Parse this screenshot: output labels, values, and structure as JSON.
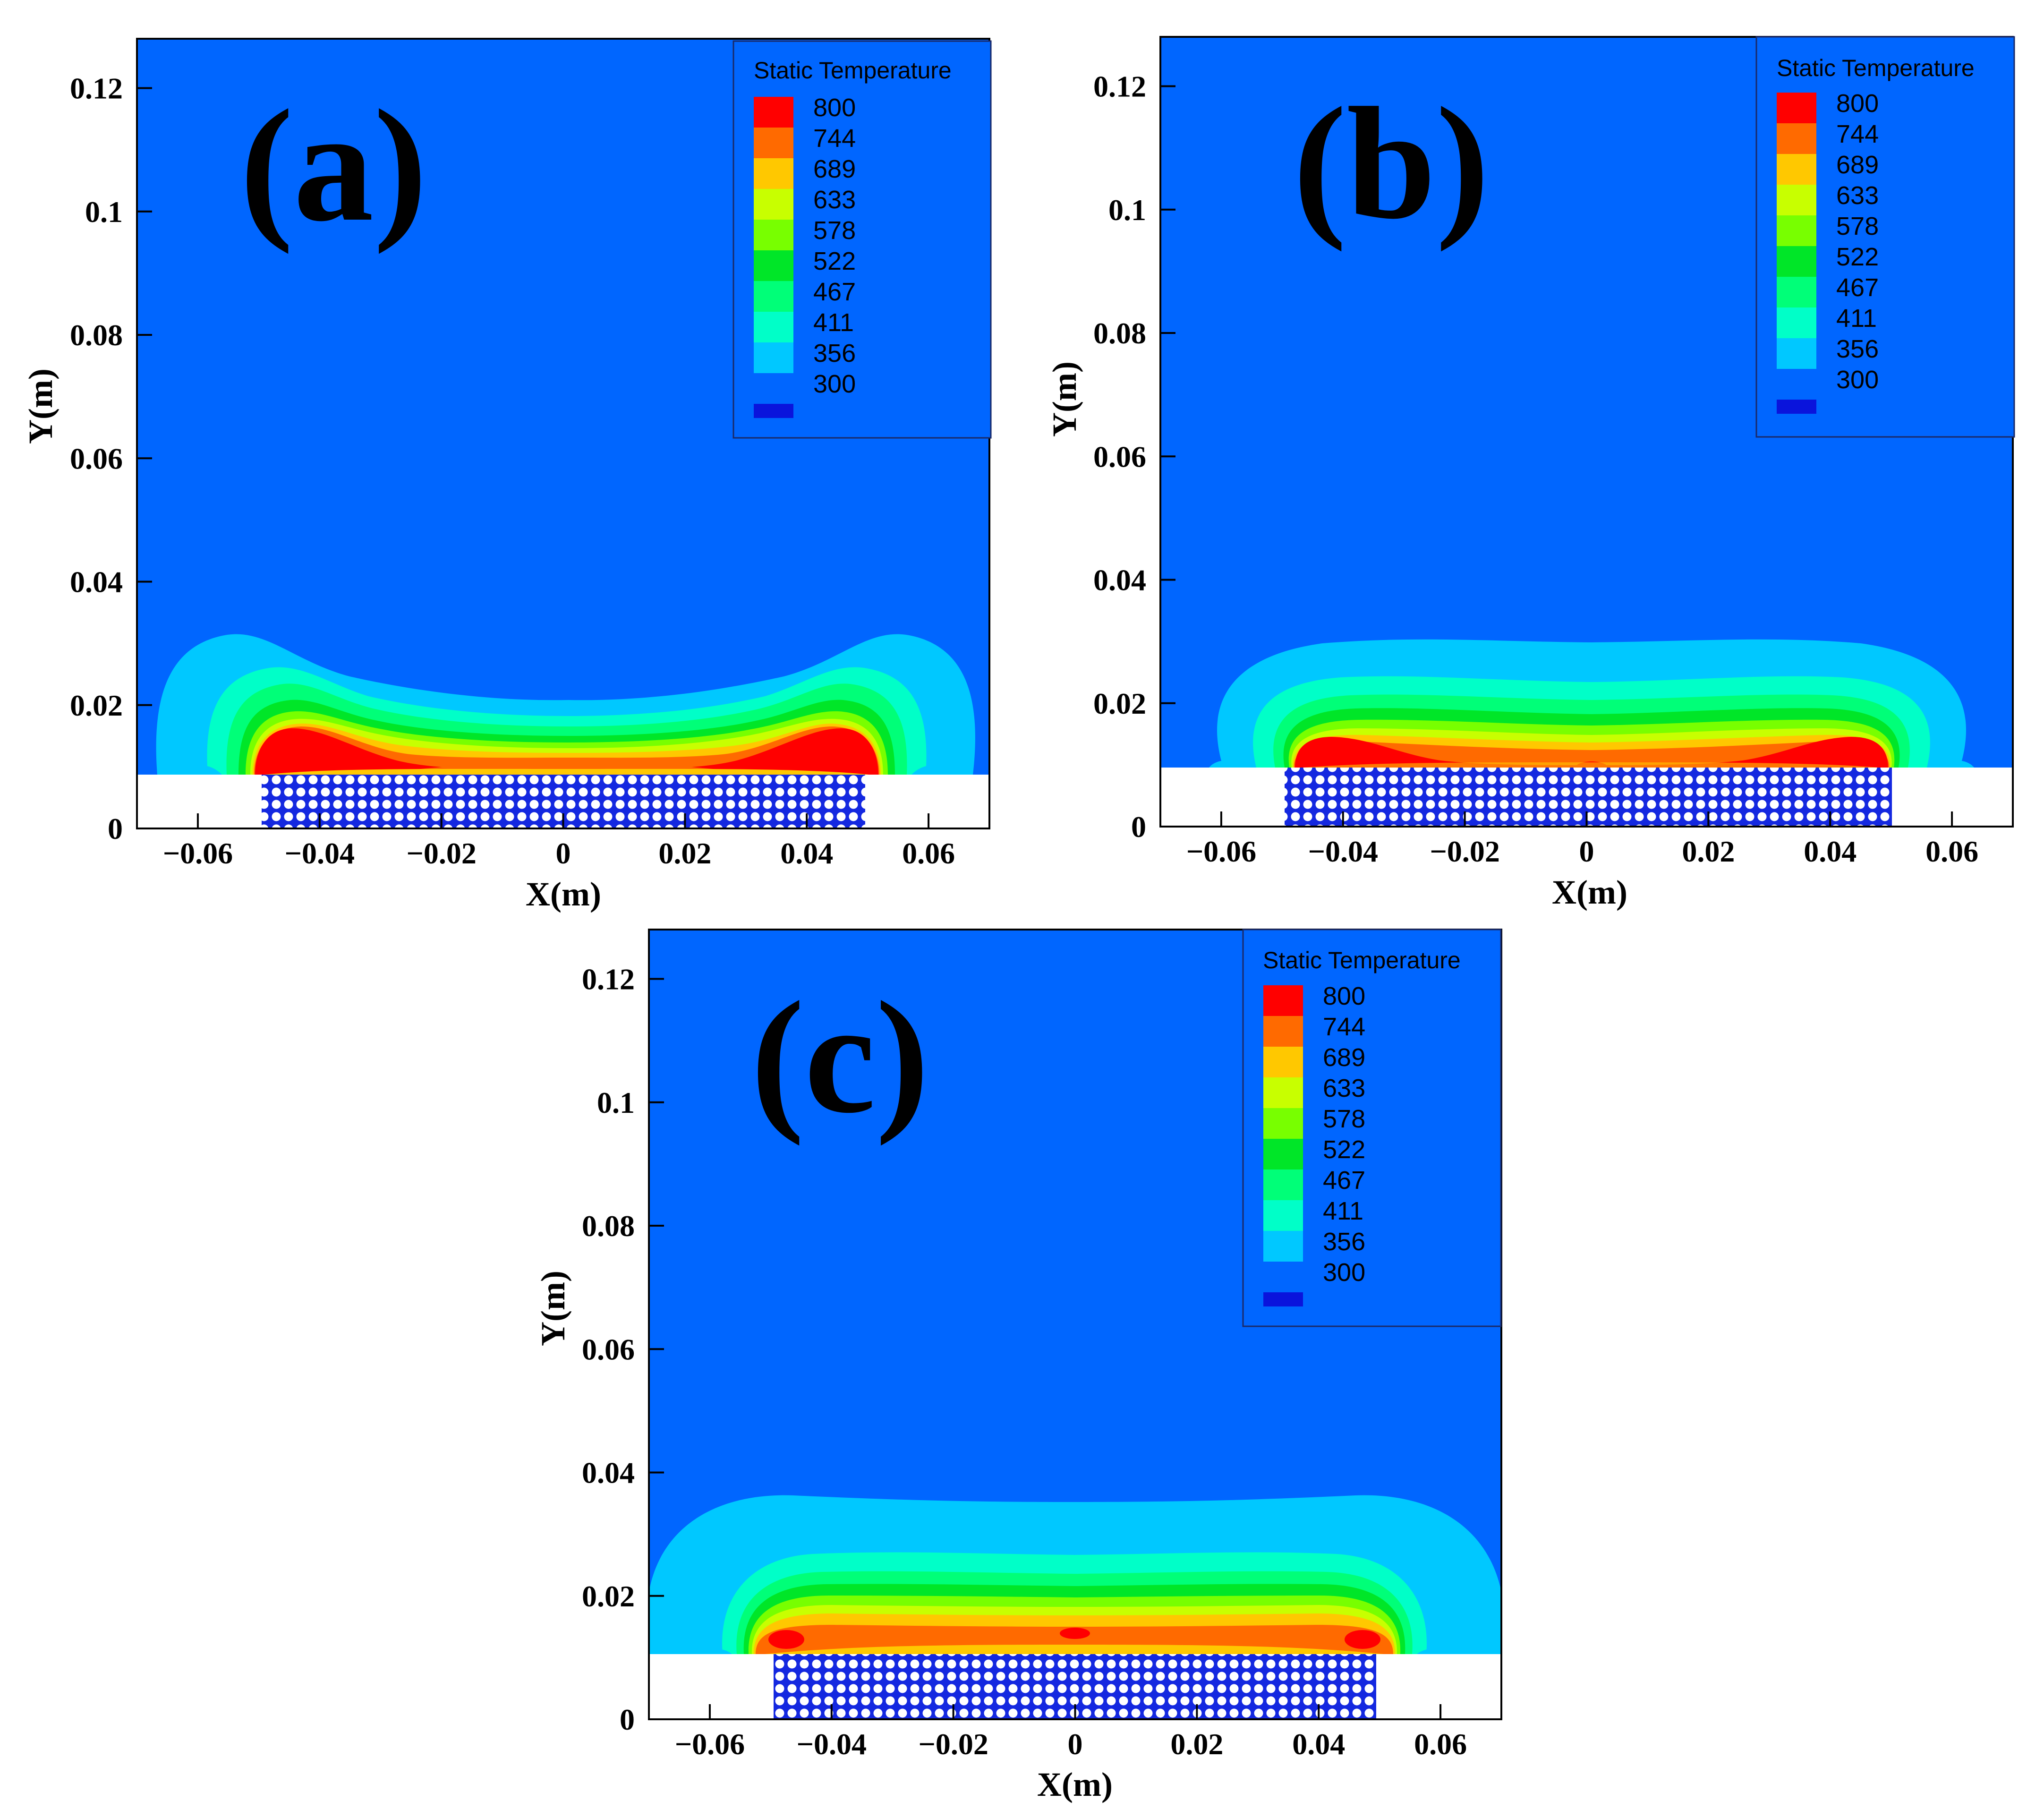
{
  "chart_data": [
    {
      "type": "heatmap",
      "panel_label": "(a)",
      "xlabel": "X(m)",
      "ylabel": "Y(m)",
      "xlim": [
        -0.07,
        0.07
      ],
      "ylim": [
        0,
        0.128
      ],
      "xticks": [
        "−0.06",
        "−0.04",
        "−0.02",
        "0",
        "0.02",
        "0.04",
        "0.06"
      ],
      "xtick_values": [
        -0.06,
        -0.04,
        -0.02,
        0,
        0.02,
        0.04,
        0.06
      ],
      "yticks": [
        "0",
        "0.02",
        "0.04",
        "0.06",
        "0.08",
        "0.1",
        "0.12"
      ],
      "ytick_values": [
        0,
        0.02,
        0.04,
        0.06,
        0.08,
        0.1,
        0.12
      ],
      "legend_title": "Static Temperature",
      "legend_levels": [
        "800",
        "744",
        "689",
        "633",
        "578",
        "522",
        "467",
        "411",
        "356",
        "300"
      ],
      "bed": {
        "x_range": [
          -0.05,
          0.05
        ],
        "height": 0.009,
        "ambient_top_y": 0.009
      },
      "plume": {
        "outer_height": 0.031,
        "center_height": 0.022,
        "hot_edge_height": 0.017,
        "hot_zone": "edges"
      }
    },
    {
      "type": "heatmap",
      "panel_label": "(b)",
      "xlabel": "X(m)",
      "ylabel": "Y(m)",
      "xlim": [
        -0.07,
        0.07
      ],
      "ylim": [
        0,
        0.128
      ],
      "xticks": [
        "−0.06",
        "−0.04",
        "−0.02",
        "0",
        "0.02",
        "0.04",
        "0.06"
      ],
      "xtick_values": [
        -0.06,
        -0.04,
        -0.02,
        0,
        0.02,
        0.04,
        0.06
      ],
      "yticks": [
        "0",
        "0.02",
        "0.04",
        "0.06",
        "0.08",
        "0.1",
        "0.12"
      ],
      "ytick_values": [
        0,
        0.02,
        0.04,
        0.06,
        0.08,
        0.1,
        0.12
      ],
      "legend_title": "Static Temperature",
      "legend_levels": [
        "800",
        "744",
        "689",
        "633",
        "578",
        "522",
        "467",
        "411",
        "356",
        "300"
      ],
      "bed": {
        "x_range": [
          -0.05,
          0.05
        ],
        "height": 0.0095,
        "ambient_top_y": 0.0095
      },
      "plume": {
        "outer_height": 0.03,
        "center_height": 0.029,
        "hot_edge_height": 0.016,
        "hot_zone": "edges"
      }
    },
    {
      "type": "heatmap",
      "panel_label": "(c)",
      "xlabel": "X(m)",
      "ylabel": "Y(m)",
      "xlim": [
        -0.07,
        0.07
      ],
      "ylim": [
        0,
        0.128
      ],
      "xticks": [
        "−0.06",
        "−0.04",
        "−0.02",
        "0",
        "0.02",
        "0.04",
        "0.06"
      ],
      "xtick_values": [
        -0.06,
        -0.04,
        -0.02,
        0,
        0.02,
        0.04,
        0.06
      ],
      "yticks": [
        "0",
        "0.02",
        "0.04",
        "0.06",
        "0.08",
        "0.1",
        "0.12"
      ],
      "ytick_values": [
        0,
        0.02,
        0.04,
        0.06,
        0.08,
        0.1,
        0.12
      ],
      "legend_title": "Static Temperature",
      "legend_levels": [
        "800",
        "744",
        "689",
        "633",
        "578",
        "522",
        "467",
        "411",
        "356",
        "300"
      ],
      "bed": {
        "x_range": [
          -0.05,
          0.05
        ],
        "height": 0.0098,
        "ambient_top_y": 0.0098
      },
      "plume": {
        "outer_height": 0.036,
        "center_height": 0.035,
        "hot_edge_height": 0.013,
        "hot_zone": "edges-and-center"
      }
    }
  ],
  "colors": {
    "background": "#0066FF",
    "bed_fill": "#1428E0",
    "bed_pores": "#FFFFFF",
    "legend_swatches": [
      "#FF0000",
      "#FF6A00",
      "#FFC800",
      "#C8FF00",
      "#78FF00",
      "#00E628",
      "#00FF78",
      "#00FFC8",
      "#00C8FF",
      "#0066FF",
      "#0A14DC"
    ]
  }
}
